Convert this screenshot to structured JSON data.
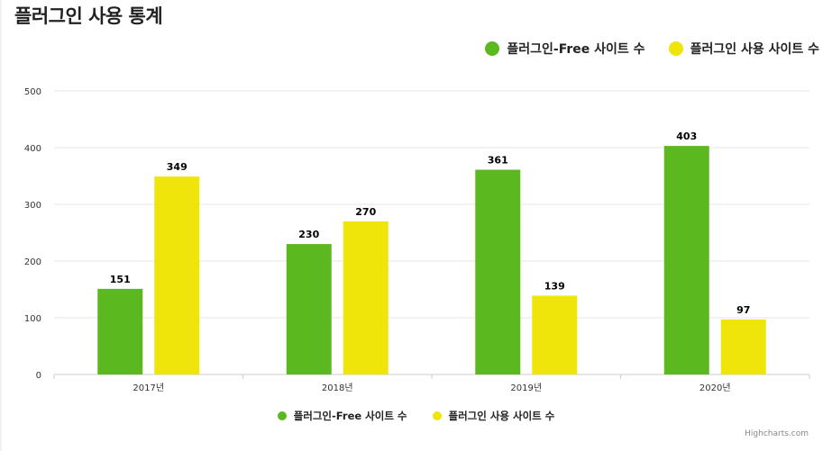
{
  "page": {
    "title": "플러그인 사용 통계"
  },
  "legend": {
    "items": [
      {
        "label": "플러그인-Free 사이트 수",
        "color": "#5cb81f"
      },
      {
        "label": "플러그인 사용 사이트 수",
        "color": "#efe50b"
      }
    ]
  },
  "credits": "Highcharts.com",
  "chart_data": {
    "type": "bar",
    "title": "플러그인 사용 통계",
    "categories": [
      "2017년",
      "2018년",
      "2019년",
      "2020년"
    ],
    "series": [
      {
        "name": "플러그인-Free 사이트 수",
        "color": "#5cb81f",
        "values": [
          151,
          230,
          361,
          403
        ]
      },
      {
        "name": "플러그인 사용 사이트 수",
        "color": "#efe50b",
        "values": [
          349,
          270,
          139,
          97
        ]
      }
    ],
    "ylim": [
      0,
      500
    ],
    "yticks": [
      0,
      100,
      200,
      300,
      400,
      500
    ],
    "grid": true,
    "data_labels": true,
    "legend_placement": [
      "top-right",
      "bottom-center"
    ]
  }
}
